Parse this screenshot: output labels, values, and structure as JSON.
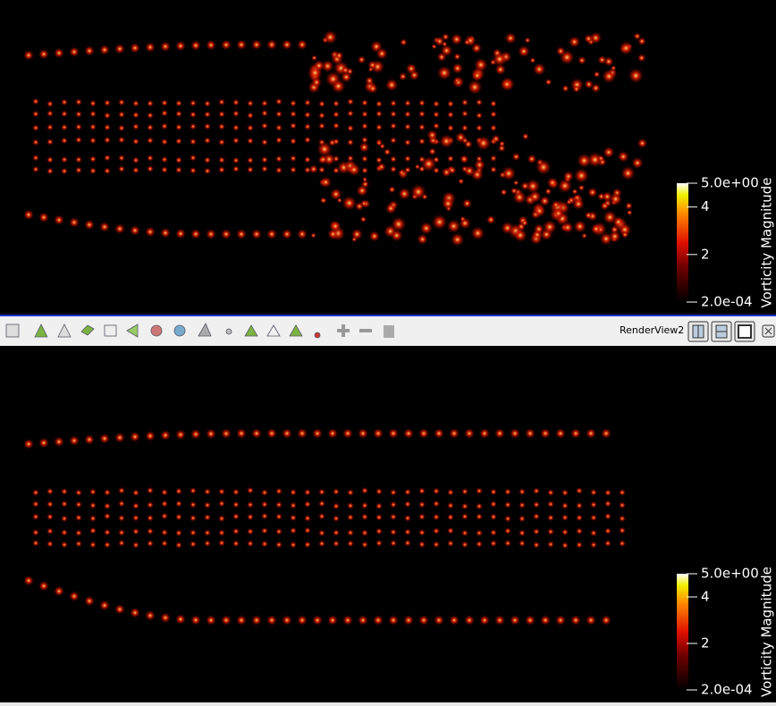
{
  "views": [
    {
      "colorbar": {
        "title": "Vorticity Magnitude",
        "ticks": [
          {
            "value": 5,
            "label": "5.0e+00"
          },
          4,
          2,
          {
            "value": 0.0002,
            "label": "2.0e-04"
          }
        ]
      }
    },
    {
      "colorbar": {
        "title": "Vorticity Magnitude",
        "ticks": [
          {
            "value": 5,
            "label": "5.0e+00"
          },
          4,
          2,
          {
            "value": 0.0002,
            "label": "2.0e-04"
          }
        ]
      }
    }
  ],
  "toolbar": {
    "view_name": "RenderView2"
  }
}
